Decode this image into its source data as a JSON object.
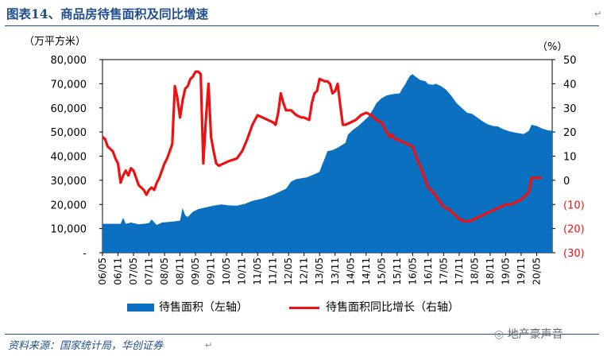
{
  "title": "图表14、商品房待售面积及同比增速",
  "source": "资料来源：国家统计局，华创证券",
  "watermark": "地产豪声音",
  "chart_data": {
    "type": "area+line",
    "ylabel_left": "（万平方米）",
    "ylabel_right": "（%）",
    "left_axis": {
      "ylim": [
        0,
        80000
      ],
      "ticks": [
        "-",
        "10,000",
        "20,000",
        "30,000",
        "40,000",
        "50,000",
        "60,000",
        "70,000",
        "80,000"
      ]
    },
    "right_axis": {
      "ylim": [
        -30,
        50
      ],
      "ticks": [
        "(30)",
        "(20)",
        "(10)",
        "0",
        "10",
        "20",
        "30",
        "40",
        "50"
      ]
    },
    "x_tick_labels": [
      "06/05",
      "06/11",
      "07/05",
      "07/11",
      "08/05",
      "08/11",
      "09/05",
      "09/11",
      "10/05",
      "10/11",
      "11/05",
      "11/11",
      "12/05",
      "12/11",
      "13/05",
      "13/11",
      "14/05",
      "14/11",
      "15/05",
      "15/11",
      "16/05",
      "16/11",
      "17/05",
      "17/11",
      "18/05",
      "18/11",
      "19/05",
      "19/11",
      "20/05"
    ],
    "x_range_months": [
      0,
      174
    ],
    "series": [
      {
        "name": "待售面积（左轴）",
        "type": "area",
        "color": "#0b70c0",
        "axis": "left",
        "points": [
          [
            0,
            12000
          ],
          [
            7,
            12000
          ],
          [
            8,
            14500
          ],
          [
            9,
            12000
          ],
          [
            11,
            12500
          ],
          [
            14,
            11800
          ],
          [
            16,
            12000
          ],
          [
            18,
            12300
          ],
          [
            19,
            13800
          ],
          [
            21,
            11500
          ],
          [
            23,
            12500
          ],
          [
            26,
            12800
          ],
          [
            28,
            13000
          ],
          [
            30,
            13300
          ],
          [
            31,
            18500
          ],
          [
            32,
            15500
          ],
          [
            33,
            14800
          ],
          [
            35,
            17000
          ],
          [
            37,
            18000
          ],
          [
            40,
            18800
          ],
          [
            43,
            19500
          ],
          [
            46,
            20000
          ],
          [
            49,
            19600
          ],
          [
            52,
            19500
          ],
          [
            55,
            20200
          ],
          [
            58,
            21500
          ],
          [
            62,
            22500
          ],
          [
            66,
            24000
          ],
          [
            69,
            25500
          ],
          [
            71,
            26500
          ],
          [
            73,
            29500
          ],
          [
            75,
            30500
          ],
          [
            79,
            31200
          ],
          [
            82,
            32500
          ],
          [
            84,
            33500
          ],
          [
            85,
            36500
          ],
          [
            86,
            39000
          ],
          [
            87,
            42000
          ],
          [
            89,
            42500
          ],
          [
            91,
            43500
          ],
          [
            94,
            45500
          ],
          [
            95,
            49000
          ],
          [
            97,
            51000
          ],
          [
            99,
            52500
          ],
          [
            101,
            54500
          ],
          [
            103,
            56500
          ],
          [
            105,
            60000
          ],
          [
            106,
            62000
          ],
          [
            108,
            64000
          ],
          [
            110,
            65200
          ],
          [
            113,
            65800
          ],
          [
            115,
            66000
          ],
          [
            116,
            68000
          ],
          [
            117,
            69500
          ],
          [
            118,
            71500
          ],
          [
            119,
            73300
          ],
          [
            120,
            74000
          ],
          [
            121,
            73000
          ],
          [
            123,
            71500
          ],
          [
            125,
            71000
          ],
          [
            126,
            69800
          ],
          [
            128,
            69600
          ],
          [
            129,
            70000
          ],
          [
            131,
            69000
          ],
          [
            133,
            67500
          ],
          [
            135,
            65000
          ],
          [
            137,
            62000
          ],
          [
            139,
            60000
          ],
          [
            141,
            58000
          ],
          [
            143,
            57500
          ],
          [
            145,
            56000
          ],
          [
            147,
            54500
          ],
          [
            149,
            53200
          ],
          [
            151,
            52500
          ],
          [
            153,
            52300
          ],
          [
            155,
            51200
          ],
          [
            157,
            50400
          ],
          [
            159,
            49900
          ],
          [
            161,
            49500
          ],
          [
            163,
            49200
          ],
          [
            165,
            50500
          ],
          [
            166,
            53000
          ],
          [
            168,
            52500
          ],
          [
            170,
            51500
          ],
          [
            172,
            50800
          ],
          [
            174,
            50500
          ]
        ]
      },
      {
        "name": "待售面积同比增长（右轴）",
        "type": "line",
        "color": "#ee1111",
        "axis": "right",
        "points": [
          [
            0,
            18
          ],
          [
            1,
            17
          ],
          [
            2,
            14
          ],
          [
            4,
            12
          ],
          [
            5,
            9
          ],
          [
            6,
            7
          ],
          [
            7,
            -1
          ],
          [
            8,
            2
          ],
          [
            9,
            4
          ],
          [
            10,
            2
          ],
          [
            11,
            5
          ],
          [
            12,
            4
          ],
          [
            13,
            1
          ],
          [
            14,
            -2
          ],
          [
            15,
            -3
          ],
          [
            16,
            -4
          ],
          [
            17,
            -6
          ],
          [
            18,
            -4
          ],
          [
            19,
            -3
          ],
          [
            20,
            -4
          ],
          [
            21,
            -1
          ],
          [
            22,
            1
          ],
          [
            23,
            4
          ],
          [
            24,
            7
          ],
          [
            25,
            9
          ],
          [
            26,
            12
          ],
          [
            27,
            15
          ],
          [
            28,
            39
          ],
          [
            29,
            34
          ],
          [
            30,
            26
          ],
          [
            31,
            33
          ],
          [
            32,
            38
          ],
          [
            33,
            39
          ],
          [
            34,
            42
          ],
          [
            35,
            43
          ],
          [
            36,
            45
          ],
          [
            37,
            45
          ],
          [
            38,
            44
          ],
          [
            39,
            7
          ],
          [
            40,
            25
          ],
          [
            41,
            40
          ],
          [
            42,
            18
          ],
          [
            43,
            12
          ],
          [
            44,
            7
          ],
          [
            45,
            6
          ],
          [
            47,
            7
          ],
          [
            49,
            8
          ],
          [
            52,
            9
          ],
          [
            54,
            12
          ],
          [
            56,
            17
          ],
          [
            58,
            23
          ],
          [
            60,
            27
          ],
          [
            62,
            26
          ],
          [
            64,
            25
          ],
          [
            66,
            24
          ],
          [
            67,
            23
          ],
          [
            68,
            28
          ],
          [
            69,
            36
          ],
          [
            70,
            32
          ],
          [
            71,
            29
          ],
          [
            73,
            29
          ],
          [
            74,
            28
          ],
          [
            75,
            27
          ],
          [
            77,
            26
          ],
          [
            78,
            26
          ],
          [
            80,
            25
          ],
          [
            81,
            32
          ],
          [
            82,
            36
          ],
          [
            83,
            37
          ],
          [
            84,
            42
          ],
          [
            86,
            41
          ],
          [
            87,
            41
          ],
          [
            88,
            40
          ],
          [
            89,
            36
          ],
          [
            90,
            37
          ],
          [
            91,
            40
          ],
          [
            92,
            31
          ],
          [
            93,
            23
          ],
          [
            94,
            23
          ],
          [
            96,
            24
          ],
          [
            98,
            25
          ],
          [
            100,
            27
          ],
          [
            102,
            28
          ],
          [
            104,
            27
          ],
          [
            106,
            25
          ],
          [
            108,
            24
          ],
          [
            110,
            20
          ],
          [
            111,
            18
          ],
          [
            112,
            19
          ],
          [
            113,
            17
          ],
          [
            114,
            17
          ],
          [
            116,
            16
          ],
          [
            118,
            15
          ],
          [
            120,
            14
          ],
          [
            122,
            8
          ],
          [
            124,
            3
          ],
          [
            126,
            -3
          ],
          [
            128,
            -5
          ],
          [
            130,
            -8
          ],
          [
            132,
            -11
          ],
          [
            134,
            -12
          ],
          [
            136,
            -14
          ],
          [
            138,
            -16
          ],
          [
            140,
            -17
          ],
          [
            142,
            -17
          ],
          [
            144,
            -16
          ],
          [
            146,
            -15
          ],
          [
            148,
            -14
          ],
          [
            150,
            -13
          ],
          [
            152,
            -12
          ],
          [
            154,
            -11
          ],
          [
            156,
            -10
          ],
          [
            158,
            -10
          ],
          [
            160,
            -9
          ],
          [
            162,
            -8
          ],
          [
            164,
            -6
          ],
          [
            165,
            -5
          ],
          [
            166,
            1
          ],
          [
            167,
            1
          ],
          [
            169,
            1
          ],
          [
            170,
            1
          ]
        ]
      }
    ]
  },
  "legend": [
    {
      "label": "待售面积（左轴）"
    },
    {
      "label": "待售面积同比增长（右轴）"
    }
  ]
}
